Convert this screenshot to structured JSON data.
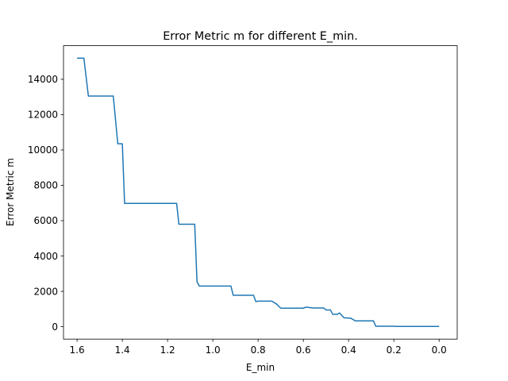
{
  "chart_data": {
    "type": "line",
    "title": "Error Metric m for different E_min.",
    "xlabel": "E_min",
    "ylabel": "Error Metric m",
    "x_inverted": true,
    "xlim": [
      1.66,
      -0.08
    ],
    "ylim": [
      -700,
      15900
    ],
    "xticks": [
      1.6,
      1.4,
      1.2,
      1.0,
      0.8,
      0.6,
      0.4,
      0.2,
      0.0
    ],
    "xtick_labels": [
      "1.6",
      "1.4",
      "1.2",
      "1.0",
      "0.8",
      "0.6",
      "0.4",
      "0.2",
      "0.0"
    ],
    "yticks": [
      0,
      2000,
      4000,
      6000,
      8000,
      10000,
      12000,
      14000
    ],
    "ytick_labels": [
      "0",
      "2000",
      "4000",
      "6000",
      "8000",
      "10000",
      "12000",
      "14000"
    ],
    "grid": false,
    "color": "#1f77b4",
    "series": [
      {
        "x": [
          1.6,
          1.57,
          1.55,
          1.44,
          1.42,
          1.4,
          1.39,
          1.16,
          1.15,
          1.08,
          1.07,
          1.06,
          0.92,
          0.91,
          0.82,
          0.81,
          0.8,
          0.74,
          0.72,
          0.7,
          0.69,
          0.6,
          0.59,
          0.58,
          0.56,
          0.51,
          0.5,
          0.48,
          0.47,
          0.45,
          0.44,
          0.42,
          0.41,
          0.39,
          0.37,
          0.36,
          0.29,
          0.28,
          0.2,
          0.19,
          0.1,
          0.0
        ],
        "y": [
          15200,
          15200,
          13050,
          13050,
          10350,
          10350,
          6980,
          6980,
          5800,
          5800,
          2550,
          2300,
          2300,
          1780,
          1780,
          1420,
          1450,
          1450,
          1300,
          1050,
          1050,
          1050,
          1100,
          1100,
          1060,
          1060,
          950,
          950,
          700,
          700,
          780,
          500,
          500,
          480,
          330,
          330,
          330,
          30,
          30,
          15,
          15,
          15
        ]
      }
    ]
  }
}
